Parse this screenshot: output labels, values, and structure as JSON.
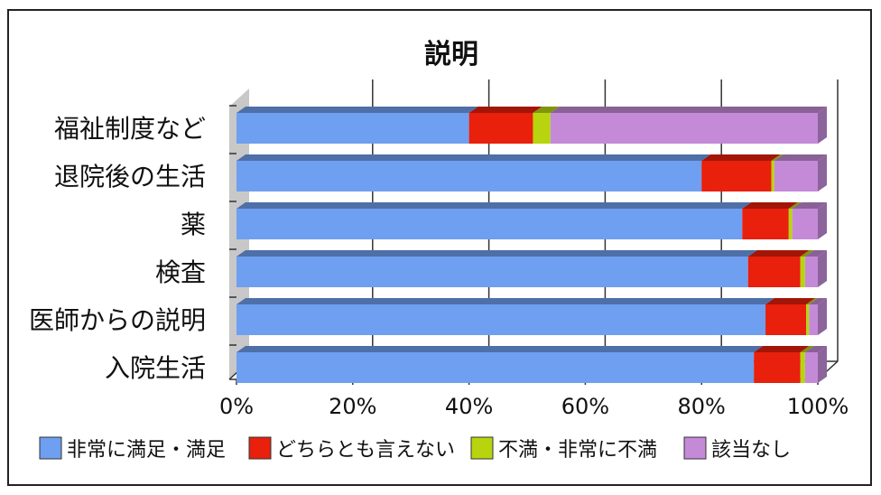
{
  "chart_data": {
    "type": "bar",
    "orientation": "horizontal",
    "stacked": "percent",
    "title": "説明",
    "categories": [
      "福祉制度など",
      "退院後の生活",
      "薬",
      "検査",
      "医師からの説明",
      "入院生活"
    ],
    "series": [
      {
        "name": "非常に満足・満足",
        "color": "#6f9ff0",
        "values": [
          40,
          80,
          87,
          88,
          91,
          89
        ]
      },
      {
        "name": "どちらとも言えない",
        "color": "#e8200c",
        "values": [
          11,
          12,
          8,
          9,
          7,
          8
        ]
      },
      {
        "name": "不満・非常に不満",
        "color": "#b8d40e",
        "values": [
          3,
          0.5,
          0.6,
          0.8,
          0.5,
          0.8
        ]
      },
      {
        "name": "該当なし",
        "color": "#c48ad8",
        "values": [
          46,
          7.5,
          4.4,
          2.2,
          1.5,
          2.2
        ]
      }
    ],
    "xticks": [
      "0%",
      "20%",
      "40%",
      "60%",
      "80%",
      "100%"
    ],
    "xlim": [
      0,
      100
    ],
    "xlabel": "",
    "ylabel": "",
    "grid": true,
    "legend": "bottom"
  }
}
